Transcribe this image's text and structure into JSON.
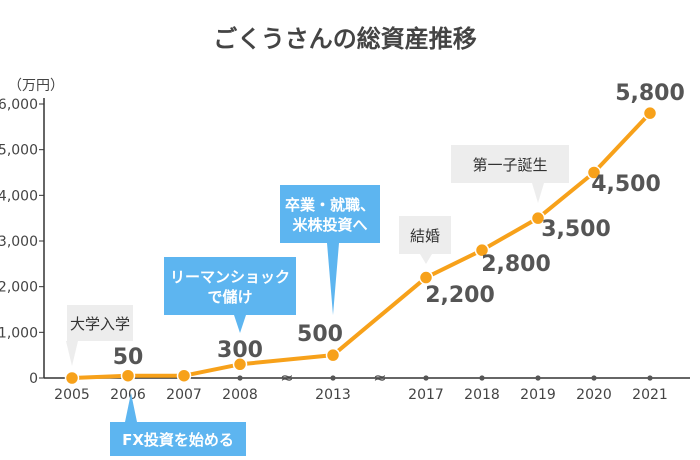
{
  "chart_data": {
    "type": "line",
    "title": "ごくうさんの総資産推移",
    "unit_label": "（万円）",
    "ylim": [
      0,
      6000
    ],
    "y_ticks": [
      "0",
      "1,000",
      "2,000",
      "3,000",
      "4,000",
      "5,000",
      "6,000"
    ],
    "x": [
      "2005",
      "2006",
      "2007",
      "2008",
      "2013",
      "2017",
      "2018",
      "2019",
      "2020",
      "2021"
    ],
    "values": [
      0,
      50,
      50,
      300,
      500,
      2200,
      2800,
      3500,
      4500,
      5800
    ],
    "data_labels": [
      "",
      "50",
      "",
      "300",
      "500",
      "2,200",
      "2,800",
      "3,500",
      "4,500",
      "5,800"
    ],
    "axis_breaks": [
      "2008-2013",
      "2013-2017"
    ],
    "grid": false,
    "annotations": [
      {
        "text": [
          "大学入学"
        ],
        "year": "2005",
        "style": "gray"
      },
      {
        "text": [
          "FX投資を始める"
        ],
        "year": "2006",
        "style": "blue"
      },
      {
        "text": [
          "リーマンショック",
          "で儲け"
        ],
        "year": "2008",
        "style": "blue"
      },
      {
        "text": [
          "卒業・就職、",
          "米株投資へ"
        ],
        "year": "2013",
        "style": "blue"
      },
      {
        "text": [
          "結婚"
        ],
        "year": "2017",
        "style": "gray"
      },
      {
        "text": [
          "第一子誕生"
        ],
        "year": "2019",
        "style": "gray"
      }
    ],
    "colors": {
      "line": "#F7A11A",
      "marker_fill": "#F7A11A",
      "marker_stroke": "#ffffff",
      "label": "#555555",
      "axis": "#333333",
      "tick_label": "#444444",
      "annotation_blue": "#5DB5F0",
      "annotation_gray": "#EDEDED"
    }
  }
}
